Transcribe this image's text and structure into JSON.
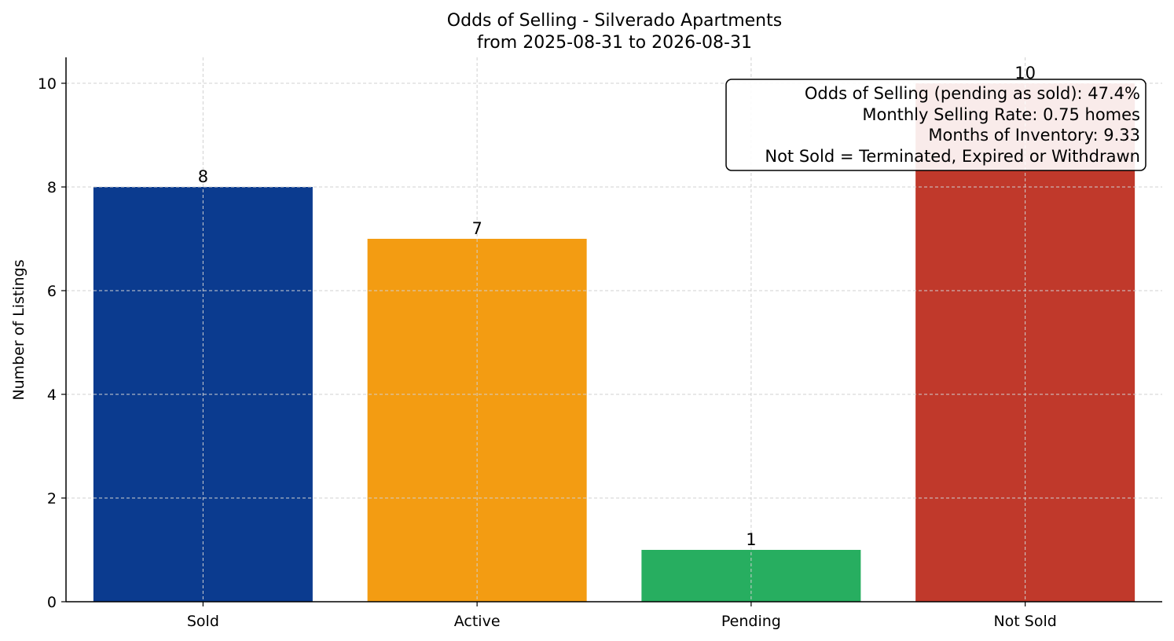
{
  "chart_data": {
    "type": "bar",
    "title": "Odds of Selling - Silverado Apartments",
    "subtitle": "from 2025-08-31 to 2026-08-31",
    "xlabel": "",
    "ylabel": "Number of Listings",
    "categories": [
      "Sold",
      "Active",
      "Pending",
      "Not Sold"
    ],
    "values": [
      8,
      7,
      1,
      10
    ],
    "colors": [
      "#0b3b8f",
      "#f39c12",
      "#27ae60",
      "#c0392b"
    ],
    "data_labels": [
      "8",
      "7",
      "1",
      "10"
    ],
    "ylim": [
      0,
      10.5
    ],
    "yticks": [
      0,
      2,
      4,
      6,
      8,
      10
    ],
    "ytick_labels": [
      "0",
      "2",
      "4",
      "6",
      "8",
      "10"
    ],
    "grid": true,
    "annotation": {
      "placement": "top-right",
      "lines": [
        "Odds of Selling (pending as sold): 47.4%",
        "Monthly Selling Rate: 0.75 homes",
        "Months of Inventory: 9.33",
        "Not Sold = Terminated, Expired or Withdrawn"
      ]
    }
  }
}
